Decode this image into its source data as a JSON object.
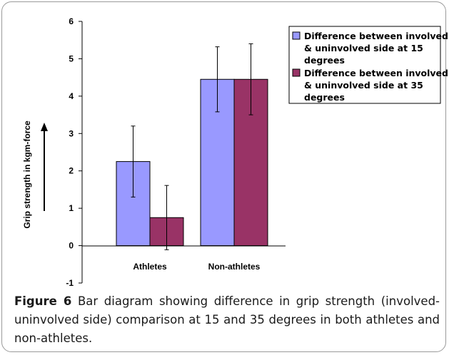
{
  "chart_data": {
    "type": "bar",
    "categories": [
      "Athletes",
      "Non-athletes"
    ],
    "series": [
      {
        "name": "Difference between involved & uninvolved side at 15 degrees",
        "legend_lines": [
          "Difference between involved",
          "& uninvolved side at 15",
          "degrees"
        ],
        "values": [
          2.25,
          4.45
        ],
        "error": [
          0.95,
          0.87
        ],
        "color": "#9999ff"
      },
      {
        "name": "Difference between involved & uninvolved side at 35 degrees",
        "legend_lines": [
          "Difference between involved",
          "& uninvolved side at 35",
          "degrees"
        ],
        "values": [
          0.75,
          4.45
        ],
        "error": [
          0.86,
          0.95
        ],
        "color": "#993366"
      }
    ],
    "ylabel": "Grip strength in kgm-force",
    "ylim": [
      -1,
      6
    ],
    "yticks": [
      "-1",
      "0",
      "1",
      "2",
      "3",
      "4",
      "5",
      "6"
    ],
    "legend_position": "top-right",
    "grid": false
  },
  "caption": {
    "label": "Figure 6",
    "text": " Bar diagram showing difference in grip strength (involved-uninvolved side) comparison at 15 and 35 degrees in both athletes and non-athletes."
  }
}
